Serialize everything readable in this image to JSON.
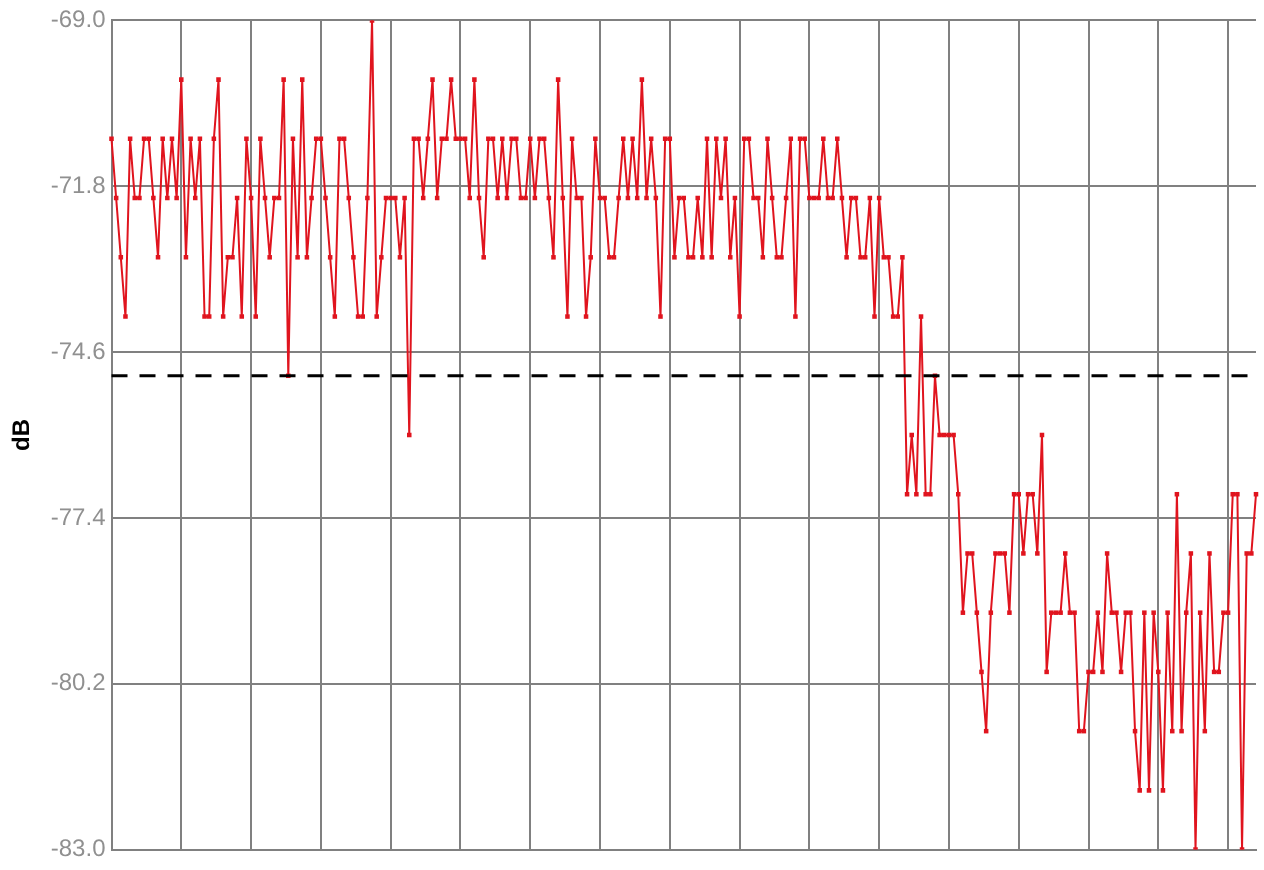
{
  "chart_data": {
    "type": "line",
    "ylabel": "dB",
    "categories": [
      null,
      null,
      null,
      null,
      null,
      null,
      null,
      null,
      null,
      null,
      null,
      null,
      null,
      null,
      null,
      null,
      null,
      null,
      null,
      null,
      null,
      null,
      null,
      null,
      null,
      null,
      null,
      null,
      null,
      null,
      null,
      null,
      null,
      null,
      null,
      null,
      null,
      null,
      null,
      null,
      null,
      null,
      null,
      null,
      null,
      null,
      null,
      null,
      null,
      null,
      null,
      null,
      null,
      null,
      null,
      null,
      null,
      null,
      null,
      null,
      null,
      null,
      null,
      null,
      null,
      null,
      null,
      null,
      null,
      null,
      null,
      null,
      null,
      null,
      null,
      null,
      null,
      null,
      null,
      null,
      null,
      null,
      null,
      null,
      null,
      null,
      null,
      null,
      null,
      null,
      null,
      null,
      null,
      null,
      null,
      null,
      null,
      null,
      null,
      null,
      null,
      null,
      null,
      null,
      null,
      null,
      null,
      null,
      null,
      null,
      null,
      null,
      null,
      null,
      null,
      null,
      null,
      null,
      null,
      null,
      null,
      null,
      null,
      null,
      null,
      null,
      null,
      null,
      null,
      null,
      null,
      null,
      null,
      null,
      null,
      null,
      null,
      null,
      null,
      null,
      null,
      null,
      null,
      null,
      null,
      null,
      null,
      null,
      null,
      null,
      null,
      null,
      null,
      null,
      null,
      null,
      null,
      null,
      null,
      null,
      null,
      null,
      null,
      null,
      null,
      null,
      null,
      null,
      null,
      null,
      null,
      null,
      null,
      null,
      null,
      null,
      null,
      null,
      null,
      null,
      null,
      null,
      null,
      null,
      null,
      null,
      null,
      null,
      null,
      null,
      null,
      null,
      null,
      null,
      null,
      null,
      null,
      null,
      null,
      null,
      null,
      null,
      null,
      null,
      null,
      null,
      null,
      null,
      null,
      null,
      null,
      null,
      null,
      null,
      null,
      null,
      null,
      null,
      null,
      null,
      null,
      null,
      null,
      null,
      null,
      null,
      null,
      null,
      null,
      null,
      null,
      null,
      null,
      null,
      null,
      null,
      null,
      null,
      null,
      null,
      null,
      null,
      null,
      null,
      null,
      null,
      null
    ],
    "series": [
      {
        "color": "#e0141e",
        "values": [
          -71,
          -72,
          -73,
          -74,
          -71,
          -72,
          -72,
          -71,
          -71,
          -72,
          -73,
          -71,
          -72,
          -71,
          -72,
          -70,
          -73,
          -71,
          -72,
          -71,
          -74,
          -74,
          -71,
          -70,
          -74,
          -73,
          -73,
          -72,
          -74,
          -71,
          -72,
          -74,
          -71,
          -72,
          -73,
          -72,
          -72,
          -70,
          -75,
          -71,
          -73,
          -70,
          -73,
          -72,
          -71,
          -71,
          -72,
          -73,
          -74,
          -71,
          -71,
          -72,
          -73,
          -74,
          -74,
          -72,
          -69,
          -74,
          -73,
          -72,
          -72,
          -72,
          -73,
          -72,
          -76,
          -71,
          -71,
          -72,
          -71,
          -70,
          -72,
          -71,
          -71,
          -70,
          -71,
          -71,
          -71,
          -72,
          -70,
          -72,
          -73,
          -71,
          -71,
          -72,
          -71,
          -72,
          -71,
          -71,
          -72,
          -72,
          -71,
          -72,
          -71,
          -71,
          -72,
          -73,
          -70,
          -72,
          -74,
          -71,
          -72,
          -72,
          -74,
          -73,
          -71,
          -72,
          -72,
          -73,
          -73,
          -72,
          -71,
          -72,
          -71,
          -72,
          -70,
          -72,
          -71,
          -72,
          -74,
          -71,
          -71,
          -73,
          -72,
          -72,
          -73,
          -73,
          -72,
          -73,
          -71,
          -73,
          -71,
          -72,
          -71,
          -73,
          -72,
          -74,
          -71,
          -71,
          -72,
          -72,
          -73,
          -71,
          -72,
          -73,
          -73,
          -72,
          -71,
          -74,
          -71,
          -71,
          -72,
          -72,
          -72,
          -71,
          -72,
          -72,
          -71,
          -72,
          -73,
          -72,
          -72,
          -73,
          -73,
          -72,
          -74,
          -72,
          -73,
          -73,
          -74,
          -74,
          -73,
          -77,
          -76,
          -77,
          -74,
          -77,
          -77,
          -75,
          -76,
          -76,
          -76,
          -76,
          -77,
          -79,
          -78,
          -78,
          -79,
          -80,
          -81,
          -79,
          -78,
          -78,
          -78,
          -79,
          -77,
          -77,
          -78,
          -77,
          -77,
          -78,
          -76,
          -80,
          -79,
          -79,
          -79,
          -78,
          -79,
          -79,
          -81,
          -81,
          -80,
          -80,
          -79,
          -80,
          -78,
          -79,
          -79,
          -80,
          -79,
          -79,
          -81,
          -82,
          -79,
          -82,
          -79,
          -80,
          -82,
          -79,
          -81,
          -77,
          -81,
          -79,
          -78,
          -83,
          -79,
          -81,
          -78,
          -80,
          -80,
          -79,
          -79,
          -77,
          -77,
          -83,
          -78,
          -78,
          -77
        ]
      }
    ],
    "ylim": [
      -83,
      -69
    ],
    "yticks": [
      {
        "value": -69,
        "label": "-69.0"
      },
      -71.8,
      -74.6,
      -77.4,
      -80.2,
      {
        "value": -83,
        "label": "-83.0"
      }
    ],
    "ref_lines": [
      {
        "axis": "y",
        "value": -75,
        "color": "#000000",
        "line_style": "dashed"
      }
    ],
    "grid": true,
    "tick_labels": "y",
    "marker": "square",
    "line_style": "solid",
    "legend": false
  }
}
